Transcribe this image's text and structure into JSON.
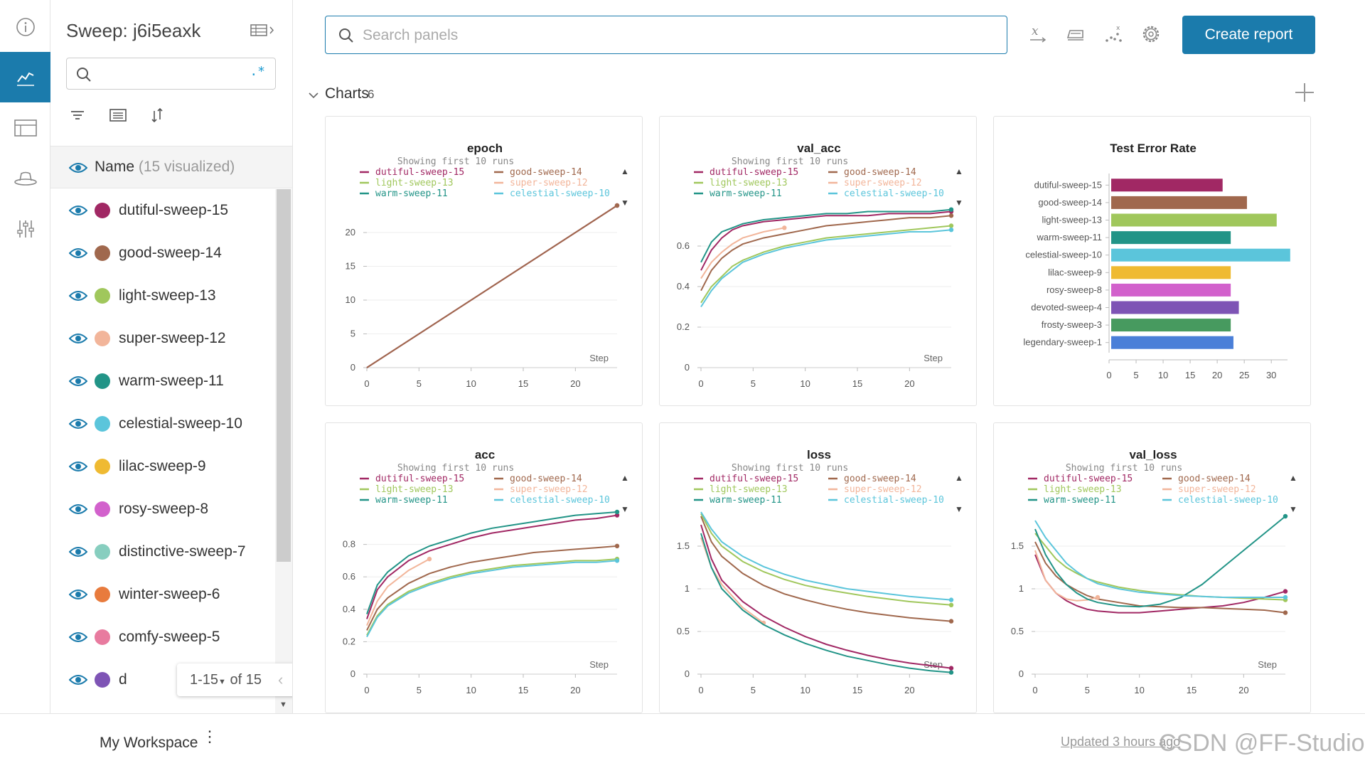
{
  "sidebar": {
    "sweep_title": "Sweep: j6i5eaxk",
    "search_value": "",
    "regex_symbol": ".*",
    "name_label": "Name",
    "visualized_label": "(15 visualized)",
    "runs": [
      {
        "name": "dutiful-sweep-15",
        "color": "#a12864"
      },
      {
        "name": "good-sweep-14",
        "color": "#a0684d"
      },
      {
        "name": "light-sweep-13",
        "color": "#a0c75c"
      },
      {
        "name": "super-sweep-12",
        "color": "#f2b59a"
      },
      {
        "name": "warm-sweep-11",
        "color": "#229487"
      },
      {
        "name": "celestial-sweep-10",
        "color": "#5bc5db"
      },
      {
        "name": "lilac-sweep-9",
        "color": "#efba32"
      },
      {
        "name": "rosy-sweep-8",
        "color": "#d261cc"
      },
      {
        "name": "distinctive-sweep-7",
        "color": "#87cebf"
      },
      {
        "name": "winter-sweep-6",
        "color": "#e87b3d"
      },
      {
        "name": "comfy-sweep-5",
        "color": "#e87b9f"
      },
      {
        "name": "d",
        "color": "#7e54b5"
      }
    ],
    "pager": {
      "range": "1-15",
      "of": "of 15"
    }
  },
  "toolbar": {
    "search_placeholder": "Search panels",
    "create_report": "Create report"
  },
  "section": {
    "title": "Charts",
    "count": "6"
  },
  "footer": {
    "workspace": "My Workspace",
    "updated": "Updated 3 hours ago",
    "watermark": "CSDN @FF-Studio"
  },
  "legend": {
    "showing": "Showing first 10 runs",
    "entries": [
      {
        "name": "dutiful-sweep-15",
        "color": "#a12864"
      },
      {
        "name": "good-sweep-14",
        "color": "#a0684d"
      },
      {
        "name": "light-sweep-13",
        "color": "#a0c75c"
      },
      {
        "name": "super-sweep-12",
        "color": "#f2b59a"
      },
      {
        "name": "warm-sweep-11",
        "color": "#229487"
      },
      {
        "name": "celestial-sweep-10",
        "color": "#5bc5db"
      }
    ]
  },
  "chart_data": [
    {
      "type": "line",
      "title": "epoch",
      "xlabel": "Step",
      "xlim": [
        0,
        24
      ],
      "ylim": [
        0,
        24
      ],
      "xticks": [
        0,
        5,
        10,
        15,
        20
      ],
      "yticks": [
        0,
        5,
        10,
        15,
        20
      ],
      "series": [
        {
          "name": "dutiful-sweep-15",
          "x": [
            0,
            24
          ],
          "y": [
            0,
            24
          ]
        },
        {
          "name": "good-sweep-14",
          "x": [
            0,
            24
          ],
          "y": [
            0,
            24
          ]
        }
      ]
    },
    {
      "type": "line",
      "title": "val_acc",
      "xlabel": "Step",
      "xlim": [
        0,
        24
      ],
      "ylim": [
        0,
        0.8
      ],
      "xticks": [
        0,
        5,
        10,
        15,
        20
      ],
      "yticks": [
        0,
        0.2,
        0.4,
        0.6
      ],
      "series": [
        {
          "name": "dutiful-sweep-15",
          "x": [
            0,
            1,
            2,
            3,
            4,
            6,
            8,
            10,
            12,
            14,
            16,
            18,
            20,
            22,
            24
          ],
          "y": [
            0.48,
            0.58,
            0.64,
            0.68,
            0.7,
            0.72,
            0.73,
            0.74,
            0.75,
            0.75,
            0.75,
            0.76,
            0.76,
            0.76,
            0.77
          ]
        },
        {
          "name": "good-sweep-14",
          "x": [
            0,
            1,
            2,
            3,
            4,
            6,
            8,
            10,
            12,
            14,
            16,
            18,
            20,
            22,
            24
          ],
          "y": [
            0.38,
            0.48,
            0.54,
            0.58,
            0.61,
            0.64,
            0.66,
            0.68,
            0.7,
            0.71,
            0.72,
            0.73,
            0.74,
            0.74,
            0.75
          ]
        },
        {
          "name": "light-sweep-13",
          "x": [
            0,
            1,
            2,
            3,
            4,
            6,
            8,
            10,
            12,
            14,
            16,
            18,
            20,
            22,
            24
          ],
          "y": [
            0.32,
            0.4,
            0.45,
            0.5,
            0.53,
            0.57,
            0.6,
            0.62,
            0.64,
            0.65,
            0.66,
            0.67,
            0.68,
            0.69,
            0.7
          ]
        },
        {
          "name": "super-sweep-12",
          "x": [
            0,
            1,
            2,
            3,
            4,
            6,
            8
          ],
          "y": [
            0.44,
            0.52,
            0.57,
            0.61,
            0.64,
            0.67,
            0.69
          ]
        },
        {
          "name": "warm-sweep-11",
          "x": [
            0,
            1,
            2,
            3,
            4,
            6,
            8,
            10,
            12,
            14,
            16,
            18,
            20,
            22,
            24
          ],
          "y": [
            0.52,
            0.62,
            0.67,
            0.69,
            0.71,
            0.73,
            0.74,
            0.75,
            0.76,
            0.76,
            0.77,
            0.77,
            0.77,
            0.77,
            0.78
          ]
        },
        {
          "name": "celestial-sweep-10",
          "x": [
            0,
            1,
            2,
            3,
            4,
            6,
            8,
            10,
            12,
            14,
            16,
            18,
            20,
            22,
            24
          ],
          "y": [
            0.3,
            0.38,
            0.44,
            0.48,
            0.52,
            0.56,
            0.59,
            0.61,
            0.63,
            0.64,
            0.65,
            0.66,
            0.67,
            0.67,
            0.68
          ]
        }
      ]
    },
    {
      "type": "bar",
      "title": "Test Error Rate",
      "orientation": "horizontal",
      "xlim": [
        0,
        33
      ],
      "xticks": [
        0,
        5,
        10,
        15,
        20,
        25,
        30
      ],
      "categories": [
        "dutiful-sweep-15",
        "good-sweep-14",
        "light-sweep-13",
        "warm-sweep-11",
        "celestial-sweep-10",
        "lilac-sweep-9",
        "rosy-sweep-8",
        "devoted-sweep-4",
        "frosty-sweep-3",
        "legendary-sweep-1"
      ],
      "values": [
        21,
        25.5,
        31,
        22.5,
        33.5,
        22.5,
        22.5,
        24,
        22.5,
        23
      ],
      "colors": [
        "#a12864",
        "#a0684d",
        "#a0c75c",
        "#229487",
        "#5bc5db",
        "#efba32",
        "#d261cc",
        "#7e54b5",
        "#479a5f",
        "#4a7fd8"
      ]
    },
    {
      "type": "line",
      "title": "acc",
      "xlabel": "Step",
      "xlim": [
        0,
        24
      ],
      "ylim": [
        0,
        1.0
      ],
      "xticks": [
        0,
        5,
        10,
        15,
        20
      ],
      "yticks": [
        0,
        0.2,
        0.4,
        0.6,
        0.8
      ],
      "series": [
        {
          "name": "dutiful-sweep-15",
          "x": [
            0,
            1,
            2,
            4,
            6,
            8,
            10,
            12,
            14,
            16,
            18,
            20,
            22,
            24
          ],
          "y": [
            0.34,
            0.52,
            0.6,
            0.7,
            0.76,
            0.8,
            0.84,
            0.87,
            0.89,
            0.91,
            0.93,
            0.95,
            0.96,
            0.98
          ]
        },
        {
          "name": "good-sweep-14",
          "x": [
            0,
            1,
            2,
            4,
            6,
            8,
            10,
            12,
            14,
            16,
            18,
            20,
            22,
            24
          ],
          "y": [
            0.27,
            0.4,
            0.47,
            0.56,
            0.62,
            0.66,
            0.69,
            0.71,
            0.73,
            0.75,
            0.76,
            0.77,
            0.78,
            0.79
          ]
        },
        {
          "name": "light-sweep-13",
          "x": [
            0,
            1,
            2,
            4,
            6,
            8,
            10,
            12,
            14,
            16,
            18,
            20,
            22,
            24
          ],
          "y": [
            0.24,
            0.36,
            0.43,
            0.51,
            0.56,
            0.6,
            0.63,
            0.65,
            0.67,
            0.68,
            0.69,
            0.7,
            0.7,
            0.71
          ]
        },
        {
          "name": "super-sweep-12",
          "x": [
            0,
            1,
            2,
            4,
            6
          ],
          "y": [
            0.3,
            0.45,
            0.54,
            0.64,
            0.71
          ]
        },
        {
          "name": "warm-sweep-11",
          "x": [
            0,
            1,
            2,
            4,
            6,
            8,
            10,
            12,
            14,
            16,
            18,
            20,
            22,
            24
          ],
          "y": [
            0.37,
            0.55,
            0.63,
            0.73,
            0.79,
            0.83,
            0.87,
            0.9,
            0.92,
            0.94,
            0.96,
            0.98,
            0.99,
            1.0
          ]
        },
        {
          "name": "celestial-sweep-10",
          "x": [
            0,
            1,
            2,
            4,
            6,
            8,
            10,
            12,
            14,
            16,
            18,
            20,
            22,
            24
          ],
          "y": [
            0.23,
            0.35,
            0.42,
            0.5,
            0.55,
            0.59,
            0.62,
            0.64,
            0.66,
            0.67,
            0.68,
            0.69,
            0.69,
            0.7
          ]
        }
      ]
    },
    {
      "type": "line",
      "title": "loss",
      "xlabel": "Step",
      "xlim": [
        0,
        24
      ],
      "ylim": [
        0,
        1.9
      ],
      "xticks": [
        0,
        5,
        10,
        15,
        20
      ],
      "yticks": [
        0,
        0.5,
        1,
        1.5
      ],
      "series": [
        {
          "name": "dutiful-sweep-15",
          "x": [
            0,
            1,
            2,
            4,
            6,
            8,
            10,
            12,
            14,
            16,
            18,
            20,
            22,
            24
          ],
          "y": [
            1.75,
            1.35,
            1.1,
            0.85,
            0.68,
            0.55,
            0.44,
            0.35,
            0.28,
            0.22,
            0.17,
            0.13,
            0.1,
            0.07
          ]
        },
        {
          "name": "good-sweep-14",
          "x": [
            0,
            1,
            2,
            4,
            6,
            8,
            10,
            12,
            14,
            16,
            18,
            20,
            22,
            24
          ],
          "y": [
            1.85,
            1.55,
            1.38,
            1.18,
            1.04,
            0.94,
            0.87,
            0.81,
            0.76,
            0.72,
            0.69,
            0.66,
            0.64,
            0.62
          ]
        },
        {
          "name": "light-sweep-13",
          "x": [
            0,
            1,
            2,
            4,
            6,
            8,
            10,
            12,
            14,
            16,
            18,
            20,
            22,
            24
          ],
          "y": [
            1.88,
            1.65,
            1.5,
            1.32,
            1.2,
            1.11,
            1.04,
            0.99,
            0.95,
            0.91,
            0.88,
            0.85,
            0.83,
            0.81
          ]
        },
        {
          "name": "super-sweep-12",
          "x": [
            0,
            1,
            2,
            4,
            6
          ],
          "y": [
            1.6,
            1.25,
            1.05,
            0.78,
            0.6
          ]
        },
        {
          "name": "warm-sweep-11",
          "x": [
            0,
            1,
            2,
            4,
            6,
            8,
            10,
            12,
            14,
            16,
            18,
            20,
            22,
            24
          ],
          "y": [
            1.65,
            1.25,
            1.0,
            0.75,
            0.58,
            0.46,
            0.36,
            0.28,
            0.21,
            0.16,
            0.11,
            0.07,
            0.04,
            0.02
          ]
        },
        {
          "name": "celestial-sweep-10",
          "x": [
            0,
            1,
            2,
            4,
            6,
            8,
            10,
            12,
            14,
            16,
            18,
            20,
            22,
            24
          ],
          "y": [
            1.9,
            1.7,
            1.55,
            1.38,
            1.26,
            1.17,
            1.1,
            1.05,
            1.0,
            0.97,
            0.94,
            0.91,
            0.89,
            0.87
          ]
        }
      ]
    },
    {
      "type": "line",
      "title": "val_loss",
      "xlabel": "Step",
      "xlim": [
        0,
        24
      ],
      "ylim": [
        0,
        1.9
      ],
      "xticks": [
        0,
        5,
        10,
        15,
        20
      ],
      "yticks": [
        0,
        0.5,
        1,
        1.5
      ],
      "series": [
        {
          "name": "dutiful-sweep-15",
          "x": [
            0,
            1,
            2,
            3,
            4,
            5,
            6,
            8,
            10,
            12,
            14,
            16,
            18,
            20,
            22,
            24
          ],
          "y": [
            1.4,
            1.1,
            0.95,
            0.86,
            0.8,
            0.76,
            0.74,
            0.72,
            0.72,
            0.74,
            0.76,
            0.78,
            0.8,
            0.84,
            0.9,
            0.97
          ]
        },
        {
          "name": "good-sweep-14",
          "x": [
            0,
            1,
            2,
            3,
            4,
            5,
            6,
            8,
            10,
            12,
            14,
            16,
            18,
            20,
            22,
            24
          ],
          "y": [
            1.55,
            1.3,
            1.15,
            1.05,
            0.98,
            0.92,
            0.88,
            0.84,
            0.8,
            0.79,
            0.78,
            0.78,
            0.77,
            0.76,
            0.75,
            0.72
          ]
        },
        {
          "name": "light-sweep-13",
          "x": [
            0,
            1,
            2,
            3,
            4,
            5,
            6,
            8,
            10,
            12,
            14,
            16,
            18,
            20,
            22,
            24
          ],
          "y": [
            1.65,
            1.5,
            1.35,
            1.25,
            1.18,
            1.12,
            1.08,
            1.02,
            0.98,
            0.95,
            0.93,
            0.91,
            0.9,
            0.89,
            0.88,
            0.87
          ]
        },
        {
          "name": "super-sweep-12",
          "x": [
            0,
            1,
            2,
            3,
            4,
            5,
            6
          ],
          "y": [
            1.45,
            1.1,
            0.95,
            0.88,
            0.86,
            0.87,
            0.9
          ]
        },
        {
          "name": "warm-sweep-11",
          "x": [
            0,
            1,
            2,
            3,
            4,
            5,
            6,
            8,
            10,
            12,
            14,
            16,
            18,
            20,
            22,
            24
          ],
          "y": [
            1.7,
            1.4,
            1.2,
            1.05,
            0.95,
            0.88,
            0.84,
            0.8,
            0.79,
            0.82,
            0.9,
            1.05,
            1.25,
            1.45,
            1.65,
            1.85
          ]
        },
        {
          "name": "celestial-sweep-10",
          "x": [
            0,
            1,
            2,
            3,
            4,
            5,
            6,
            8,
            10,
            12,
            14,
            16,
            18,
            20,
            22,
            24
          ],
          "y": [
            1.8,
            1.6,
            1.45,
            1.3,
            1.2,
            1.12,
            1.06,
            1.0,
            0.96,
            0.94,
            0.92,
            0.91,
            0.9,
            0.9,
            0.9,
            0.9
          ]
        }
      ]
    }
  ]
}
